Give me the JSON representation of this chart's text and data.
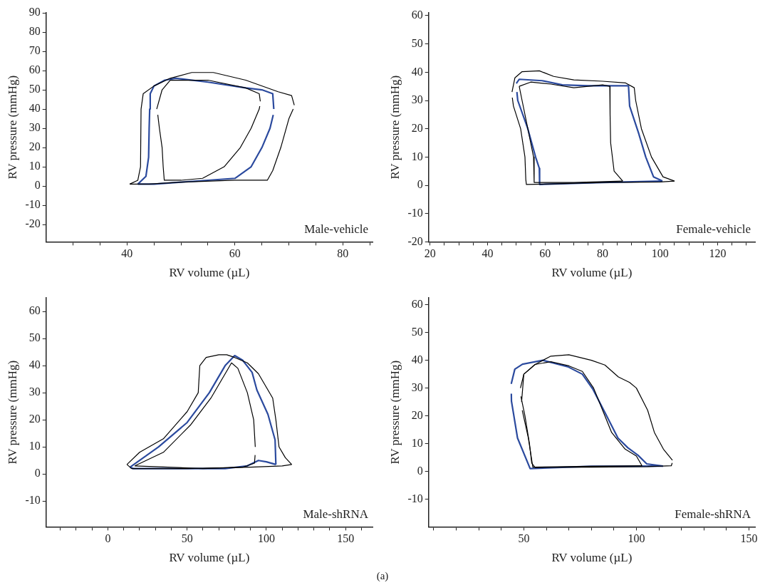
{
  "chart_data": [
    {
      "type": "line",
      "xlabel": "RV volume (µL)",
      "ylabel": "RV pressure (mmHg)",
      "annotations": [
        "Male-vehicle"
      ],
      "xlim": [
        25,
        85.5
      ],
      "ylim": [
        -29,
        90
      ],
      "xticks": [
        {
          "value": 30,
          "label": null
        },
        {
          "value": 35,
          "label": null
        },
        40,
        {
          "value": 45,
          "label": null
        },
        {
          "value": 50,
          "label": null
        },
        {
          "value": 55,
          "label": null
        },
        60,
        {
          "value": 65,
          "label": null
        },
        {
          "value": 70,
          "label": null
        },
        {
          "value": 75,
          "label": null
        },
        80,
        {
          "value": 85,
          "label": null
        }
      ],
      "yticks": [
        -20,
        -10,
        0,
        10,
        20,
        30,
        40,
        50,
        60,
        70,
        80,
        90
      ],
      "series": [
        {
          "color": "#000000",
          "x": [
            40.5,
            42,
            42.5,
            42.6,
            43,
            45,
            48,
            52,
            56,
            62,
            68,
            70.5,
            71
          ],
          "values": [
            1,
            3,
            10,
            40,
            48,
            52,
            56,
            59,
            59,
            55,
            49,
            47,
            42
          ]
        },
        {
          "color": "#000000",
          "x": [
            40.5,
            44,
            50,
            60,
            66,
            67,
            68.5,
            70,
            70.8
          ],
          "values": [
            1,
            1,
            2,
            3,
            3,
            8,
            20,
            35,
            40
          ]
        },
        {
          "color": "#000000",
          "x": [
            45.5,
            46.5,
            48,
            55,
            62,
            64.5,
            64.7
          ],
          "values": [
            40,
            50,
            55,
            55,
            51,
            48,
            44
          ]
        },
        {
          "color": "#000000",
          "x": [
            45.7,
            46,
            46.5,
            46.7,
            46.9,
            50,
            54,
            58,
            61,
            63,
            64.5,
            64.6
          ],
          "values": [
            37,
            30,
            20,
            10,
            3,
            3,
            4,
            10,
            20,
            30,
            40,
            41.5
          ]
        },
        {
          "color": "#2b4a9e",
          "x": [
            42,
            43.5,
            44,
            44.1,
            44.2,
            44.3,
            45,
            47,
            49,
            55,
            62,
            65,
            67,
            67.2
          ],
          "values": [
            1,
            5,
            15,
            30,
            40,
            48,
            52,
            55,
            56,
            54,
            51,
            50,
            48,
            40
          ]
        },
        {
          "color": "#2b4a9e",
          "x": [
            42,
            45,
            50,
            55,
            60,
            63,
            65,
            66.5,
            67.1
          ],
          "values": [
            1,
            1,
            2,
            3,
            4,
            10,
            20,
            30,
            37
          ]
        }
      ]
    },
    {
      "type": "line",
      "xlabel": "RV volume (µL)",
      "ylabel": "RV pressure (mmHg)",
      "annotations": [
        "Female-vehicle"
      ],
      "xlim": [
        19.5,
        133
      ],
      "ylim": [
        -20,
        61
      ],
      "xticks": [
        20,
        {
          "value": 25,
          "label": null
        },
        {
          "value": 30,
          "label": null
        },
        {
          "value": 35,
          "label": null
        },
        40,
        {
          "value": 45,
          "label": null
        },
        {
          "value": 50,
          "label": null
        },
        {
          "value": 55,
          "label": null
        },
        60,
        {
          "value": 65,
          "label": null
        },
        {
          "value": 70,
          "label": null
        },
        {
          "value": 75,
          "label": null
        },
        80,
        {
          "value": 85,
          "label": null
        },
        {
          "value": 90,
          "label": null
        },
        {
          "value": 95,
          "label": null
        },
        100,
        {
          "value": 105,
          "label": null
        },
        {
          "value": 110,
          "label": null
        },
        {
          "value": 115,
          "label": null
        },
        120,
        {
          "value": 125,
          "label": null
        },
        {
          "value": 130,
          "label": null
        }
      ],
      "yticks": [
        -20,
        -10,
        0,
        10,
        20,
        30,
        40,
        50,
        60
      ],
      "series": [
        {
          "color": "#000000",
          "x": [
            48.5,
            49.5,
            52,
            58,
            63,
            70,
            80,
            88,
            91,
            91.5,
            93.5,
            97,
            101,
            105
          ],
          "values": [
            33,
            38,
            40.2,
            40.5,
            38.5,
            37.3,
            36.8,
            36.2,
            34.5,
            30,
            20,
            10,
            3,
            1.5
          ]
        },
        {
          "color": "#000000",
          "x": [
            48.6,
            49,
            51.5,
            53,
            53.3,
            53.5,
            60,
            80,
            100,
            105
          ],
          "values": [
            31,
            28,
            20,
            10,
            2,
            0.3,
            0.4,
            1,
            1.2,
            1.5
          ]
        },
        {
          "color": "#000000",
          "x": [
            51,
            55,
            62,
            70,
            80,
            82.5,
            82.6,
            82.8,
            84,
            87
          ],
          "values": [
            35,
            36.5,
            35.8,
            34.5,
            35.5,
            35,
            25,
            15,
            5,
            1.5
          ]
        },
        {
          "color": "#000000",
          "x": [
            51,
            52,
            54,
            56,
            56.2,
            70,
            87
          ],
          "values": [
            35,
            30,
            20,
            10,
            1,
            1,
            1.5
          ]
        },
        {
          "color": "#2b4a9e",
          "x": [
            50,
            51,
            59,
            66,
            75,
            89,
            89.4,
            92.5,
            95,
            97.7,
            100.8
          ],
          "values": [
            36,
            37.5,
            37,
            35.5,
            35.2,
            35.2,
            28,
            18.5,
            10,
            3,
            1.5
          ]
        },
        {
          "color": "#2b4a9e",
          "x": [
            50.2,
            50.5,
            54,
            56.7,
            58,
            58.1,
            80,
            100.8
          ],
          "values": [
            33,
            30,
            20,
            10,
            6,
            0.3,
            1,
            1.5
          ]
        }
      ]
    },
    {
      "type": "line",
      "xlabel": "RV volume (µL)",
      "ylabel": "RV pressure (mmHg)",
      "annotations": [
        "Male-shRNA"
      ],
      "xlim": [
        -39,
        167
      ],
      "ylim": [
        -19.5,
        65
      ],
      "xticks": [
        {
          "value": -30,
          "label": null
        },
        {
          "value": -20,
          "label": null
        },
        {
          "value": -10,
          "label": null
        },
        0,
        {
          "value": 10,
          "label": null
        },
        {
          "value": 20,
          "label": null
        },
        {
          "value": 30,
          "label": null
        },
        {
          "value": 40,
          "label": null
        },
        50,
        {
          "value": 60,
          "label": null
        },
        {
          "value": 70,
          "label": null
        },
        {
          "value": 80,
          "label": null
        },
        {
          "value": 90,
          "label": null
        },
        100,
        {
          "value": 110,
          "label": null
        },
        {
          "value": 120,
          "label": null
        },
        {
          "value": 130,
          "label": null
        },
        {
          "value": 140,
          "label": null
        },
        150,
        {
          "value": 160,
          "label": null
        }
      ],
      "yticks": [
        -10,
        0,
        10,
        20,
        30,
        40,
        50,
        60
      ],
      "series": [
        {
          "color": "#000000",
          "x": [
            12,
            20,
            35,
            50,
            57,
            58,
            62,
            70,
            75,
            80,
            88,
            95,
            104,
            106,
            108,
            112,
            116
          ],
          "values": [
            3.5,
            8,
            13,
            23,
            30,
            40,
            43,
            44,
            44,
            43,
            41,
            37,
            28,
            20,
            10,
            6,
            3.5
          ]
        },
        {
          "color": "#000000",
          "x": [
            12,
            15,
            50,
            90,
            110,
            116
          ],
          "values": [
            3.5,
            2,
            2,
            2.5,
            3,
            3.5
          ]
        },
        {
          "color": "#000000",
          "x": [
            17,
            35,
            52,
            65,
            75,
            78,
            82,
            88,
            92,
            93
          ],
          "values": [
            3,
            8,
            18,
            28,
            38,
            41,
            39,
            30,
            20,
            10
          ]
        },
        {
          "color": "#000000",
          "x": [
            17,
            60,
            85,
            92.5,
            92.9
          ],
          "values": [
            3,
            2,
            2.5,
            4,
            7
          ]
        },
        {
          "color": "#2b4a9e",
          "x": [
            14,
            20,
            32,
            50,
            64,
            74,
            80,
            85,
            91,
            94,
            101,
            105.5,
            106
          ],
          "values": [
            2.5,
            5,
            10,
            19,
            30,
            40,
            43.7,
            42,
            37.5,
            31,
            22,
            12.6,
            3.5
          ]
        },
        {
          "color": "#2b4a9e",
          "x": [
            14,
            16,
            40,
            74,
            88,
            95,
            100,
            106
          ],
          "values": [
            2.5,
            2,
            2,
            2,
            3,
            5,
            4.5,
            3.5
          ]
        }
      ]
    },
    {
      "type": "line",
      "xlabel": "RV volume (µL)",
      "ylabel": "RV pressure (mmHg)",
      "annotations": [
        "Female-shRNA",
        "(a)"
      ],
      "xlim": [
        7.7,
        152.7
      ],
      "ylim": [
        -20,
        62.5
      ],
      "xticks": [
        {
          "value": 10,
          "label": null
        },
        {
          "value": 20,
          "label": null
        },
        {
          "value": 30,
          "label": null
        },
        {
          "value": 40,
          "label": null
        },
        50,
        {
          "value": 60,
          "label": null
        },
        {
          "value": 70,
          "label": null
        },
        {
          "value": 80,
          "label": null
        },
        {
          "value": 90,
          "label": null
        },
        100,
        {
          "value": 110,
          "label": null
        },
        {
          "value": 120,
          "label": null
        },
        {
          "value": 130,
          "label": null
        },
        {
          "value": 140,
          "label": null
        },
        150
      ],
      "yticks": [
        -10,
        0,
        10,
        20,
        30,
        40,
        50,
        60
      ],
      "series": [
        {
          "color": "#000000",
          "x": [
            48.5,
            50,
            55,
            62,
            70,
            80,
            86,
            92,
            97,
            100,
            105,
            108,
            112,
            116
          ],
          "values": [
            30,
            35,
            38.5,
            41.5,
            42,
            40,
            38.3,
            34,
            32,
            30,
            22,
            14,
            8,
            4
          ]
        },
        {
          "color": "#000000",
          "x": [
            48.7,
            50.5,
            52.5,
            53.5,
            55,
            80,
            105,
            115.5,
            115.9
          ],
          "values": [
            27,
            20,
            10,
            3,
            1.4,
            1.5,
            1.7,
            2,
            3
          ]
        },
        {
          "color": "#000000",
          "x": [
            49,
            50,
            55,
            62,
            70,
            76,
            81,
            85,
            89,
            95,
            100,
            102.5
          ],
          "values": [
            25,
            35,
            38.5,
            39.5,
            38,
            36,
            30,
            22,
            14,
            8,
            5.5,
            2
          ]
        },
        {
          "color": "#000000",
          "x": [
            49.3,
            52,
            54,
            80,
            102.5
          ],
          "values": [
            22,
            12,
            1.5,
            1.8,
            2
          ]
        },
        {
          "color": "#2b4a9e",
          "x": [
            44.4,
            46,
            49.4,
            58.4,
            69.5,
            76,
            80.6,
            86.2,
            91.8,
            96.2,
            100.7,
            104.6,
            111.8
          ],
          "values": [
            31.5,
            36.8,
            38.6,
            40,
            37.7,
            35,
            29.7,
            20.9,
            12,
            8.5,
            5.8,
            2.7,
            1.9
          ]
        },
        {
          "color": "#2b4a9e",
          "x": [
            44.45,
            44.5,
            47.2,
            52.8,
            80,
            111.8
          ],
          "values": [
            28,
            25.3,
            12,
            1,
            1.8,
            1.9
          ]
        }
      ]
    }
  ]
}
